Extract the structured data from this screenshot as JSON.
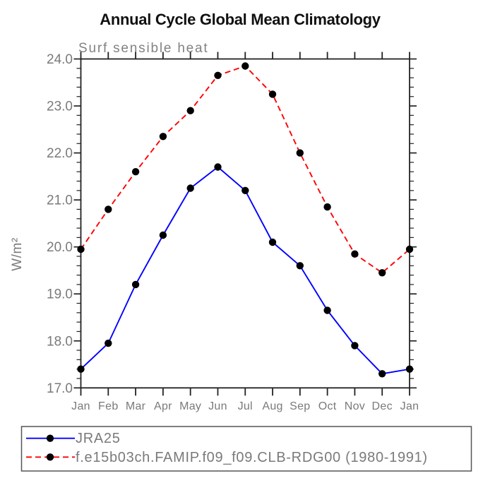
{
  "page_title": "Annual Cycle Global Mean Climatology",
  "chart_data": {
    "type": "line",
    "title": "Annual Cycle Global Mean Climatology",
    "subtitle": "Surf sensible heat",
    "ylabel": "W/m²",
    "xlabel": "",
    "categories": [
      "Jan",
      "Feb",
      "Mar",
      "Apr",
      "May",
      "Jun",
      "Jul",
      "Aug",
      "Sep",
      "Oct",
      "Nov",
      "Dec",
      "Jan"
    ],
    "ylim": [
      17.0,
      24.0
    ],
    "ytick_major_step": 1.0,
    "ytick_minor_step": 0.2,
    "ytick_labels": [
      "17.0",
      "18.0",
      "19.0",
      "20.0",
      "21.0",
      "22.0",
      "23.0",
      "24.0"
    ],
    "grid": false,
    "axis_box": true,
    "legend_position": "bottom-left-box",
    "series": [
      {
        "name": "JRA25",
        "color": "#0000ff",
        "line_style": "solid",
        "marker": "circle",
        "marker_color": "#000000",
        "values": [
          17.4,
          17.95,
          19.2,
          20.25,
          21.25,
          21.7,
          21.2,
          20.1,
          19.6,
          18.65,
          17.9,
          17.3,
          17.4
        ]
      },
      {
        "name": "f.e15b03ch.FAMIP.f09_f09.CLB-RDG00 (1980-1991)",
        "color": "#ff0000",
        "line_style": "dashed",
        "marker": "circle",
        "marker_color": "#000000",
        "values": [
          19.95,
          20.8,
          21.6,
          22.35,
          22.9,
          23.65,
          23.85,
          23.25,
          22.0,
          20.85,
          19.85,
          19.45,
          19.95
        ]
      }
    ]
  },
  "colors": {
    "axis": "#222222",
    "tick": "#222222",
    "label_text": "#7a7a7a",
    "title_text": "#111111",
    "legend_border": "#555555",
    "background": "#ffffff",
    "series_jra25": "#0000ff",
    "series_model": "#ff0000",
    "marker": "#000000"
  }
}
